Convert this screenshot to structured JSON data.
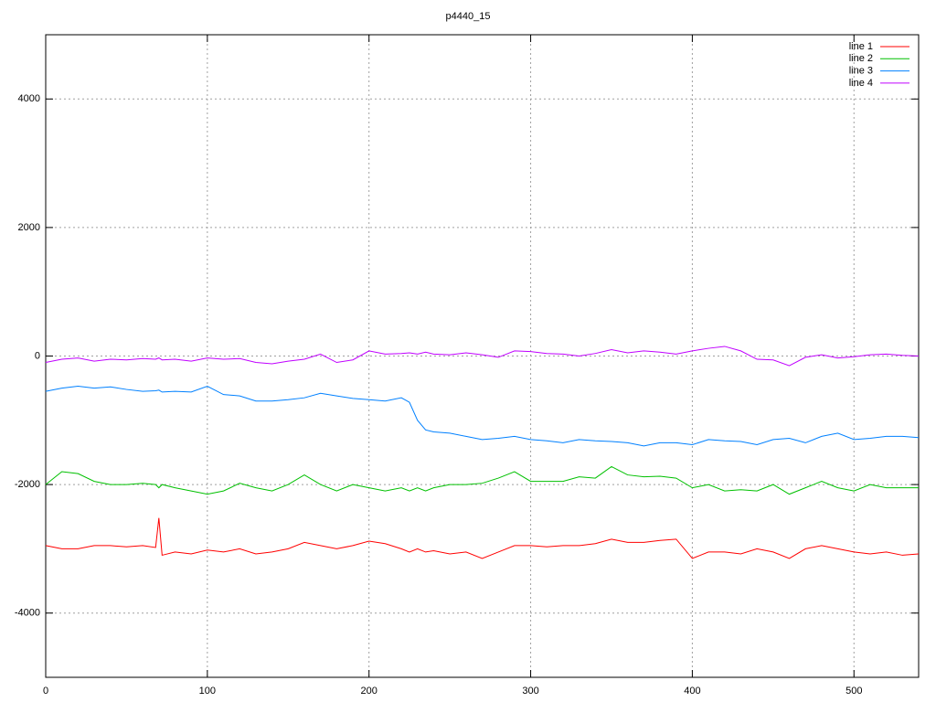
{
  "chart_data": {
    "type": "line",
    "title": "p4440_15",
    "x": [
      0,
      10,
      20,
      30,
      40,
      50,
      60,
      68,
      70,
      72,
      80,
      90,
      100,
      110,
      120,
      130,
      140,
      150,
      160,
      170,
      180,
      190,
      200,
      210,
      220,
      225,
      230,
      235,
      240,
      250,
      260,
      270,
      280,
      290,
      300,
      310,
      320,
      330,
      340,
      350,
      360,
      370,
      380,
      390,
      400,
      410,
      420,
      430,
      440,
      450,
      460,
      470,
      480,
      490,
      500,
      510,
      520,
      530,
      540
    ],
    "series": [
      {
        "name": "line 1",
        "color": "#ff0000",
        "values": [
          -2950,
          -3000,
          -3000,
          -2950,
          -2950,
          -2970,
          -2950,
          -2980,
          -2520,
          -3100,
          -3050,
          -3080,
          -3020,
          -3050,
          -3000,
          -3080,
          -3050,
          -3000,
          -2900,
          -2950,
          -3000,
          -2950,
          -2880,
          -2920,
          -3000,
          -3050,
          -3000,
          -3050,
          -3030,
          -3080,
          -3050,
          -3150,
          -3050,
          -2950,
          -2950,
          -2970,
          -2950,
          -2950,
          -2920,
          -2850,
          -2900,
          -2900,
          -2870,
          -2850,
          -3150,
          -3050,
          -3050,
          -3080,
          -3000,
          -3050,
          -3150,
          -3000,
          -2950,
          -3000,
          -3050,
          -3080,
          -3050,
          -3100,
          -3080
        ]
      },
      {
        "name": "line 2",
        "color": "#00c000",
        "values": [
          -2000,
          -1800,
          -1830,
          -1950,
          -2000,
          -2000,
          -1980,
          -2000,
          -2050,
          -2000,
          -2050,
          -2100,
          -2150,
          -2100,
          -1980,
          -2050,
          -2100,
          -2000,
          -1850,
          -2000,
          -2100,
          -2000,
          -2050,
          -2100,
          -2050,
          -2100,
          -2050,
          -2100,
          -2050,
          -2000,
          -2000,
          -1980,
          -1900,
          -1800,
          -1950,
          -1950,
          -1950,
          -1880,
          -1900,
          -1720,
          -1850,
          -1880,
          -1870,
          -1900,
          -2050,
          -2000,
          -2100,
          -2080,
          -2100,
          -2000,
          -2150,
          -2050,
          -1950,
          -2050,
          -2100,
          -2000,
          -2050,
          -2050,
          -2050
        ]
      },
      {
        "name": "line 3",
        "color": "#0080ff",
        "values": [
          -550,
          -500,
          -470,
          -500,
          -480,
          -520,
          -550,
          -540,
          -530,
          -560,
          -550,
          -560,
          -470,
          -600,
          -620,
          -700,
          -700,
          -680,
          -650,
          -580,
          -620,
          -660,
          -680,
          -700,
          -650,
          -720,
          -1000,
          -1150,
          -1180,
          -1200,
          -1250,
          -1300,
          -1280,
          -1250,
          -1300,
          -1320,
          -1350,
          -1300,
          -1320,
          -1330,
          -1350,
          -1400,
          -1350,
          -1350,
          -1380,
          -1300,
          -1320,
          -1330,
          -1380,
          -1300,
          -1280,
          -1350,
          -1250,
          -1200,
          -1300,
          -1280,
          -1250,
          -1250,
          -1270
        ]
      },
      {
        "name": "line 4",
        "color": "#c000ff",
        "values": [
          -100,
          -50,
          -30,
          -80,
          -50,
          -60,
          -40,
          -50,
          -30,
          -60,
          -50,
          -80,
          -30,
          -50,
          -40,
          -100,
          -120,
          -80,
          -50,
          30,
          -100,
          -60,
          80,
          30,
          40,
          50,
          30,
          60,
          30,
          20,
          50,
          20,
          -20,
          80,
          70,
          40,
          30,
          0,
          40,
          100,
          50,
          80,
          60,
          30,
          80,
          120,
          150,
          80,
          -50,
          -60,
          -150,
          -20,
          20,
          -30,
          -10,
          20,
          30,
          10,
          0
        ]
      }
    ],
    "xlim": [
      0,
      540
    ],
    "xticks": [
      0,
      100,
      200,
      300,
      400,
      500
    ],
    "ylim": [
      -5000,
      5000
    ],
    "yticks": [
      -4000,
      -2000,
      0,
      2000,
      4000
    ],
    "grid": true,
    "legend": "top-right"
  }
}
